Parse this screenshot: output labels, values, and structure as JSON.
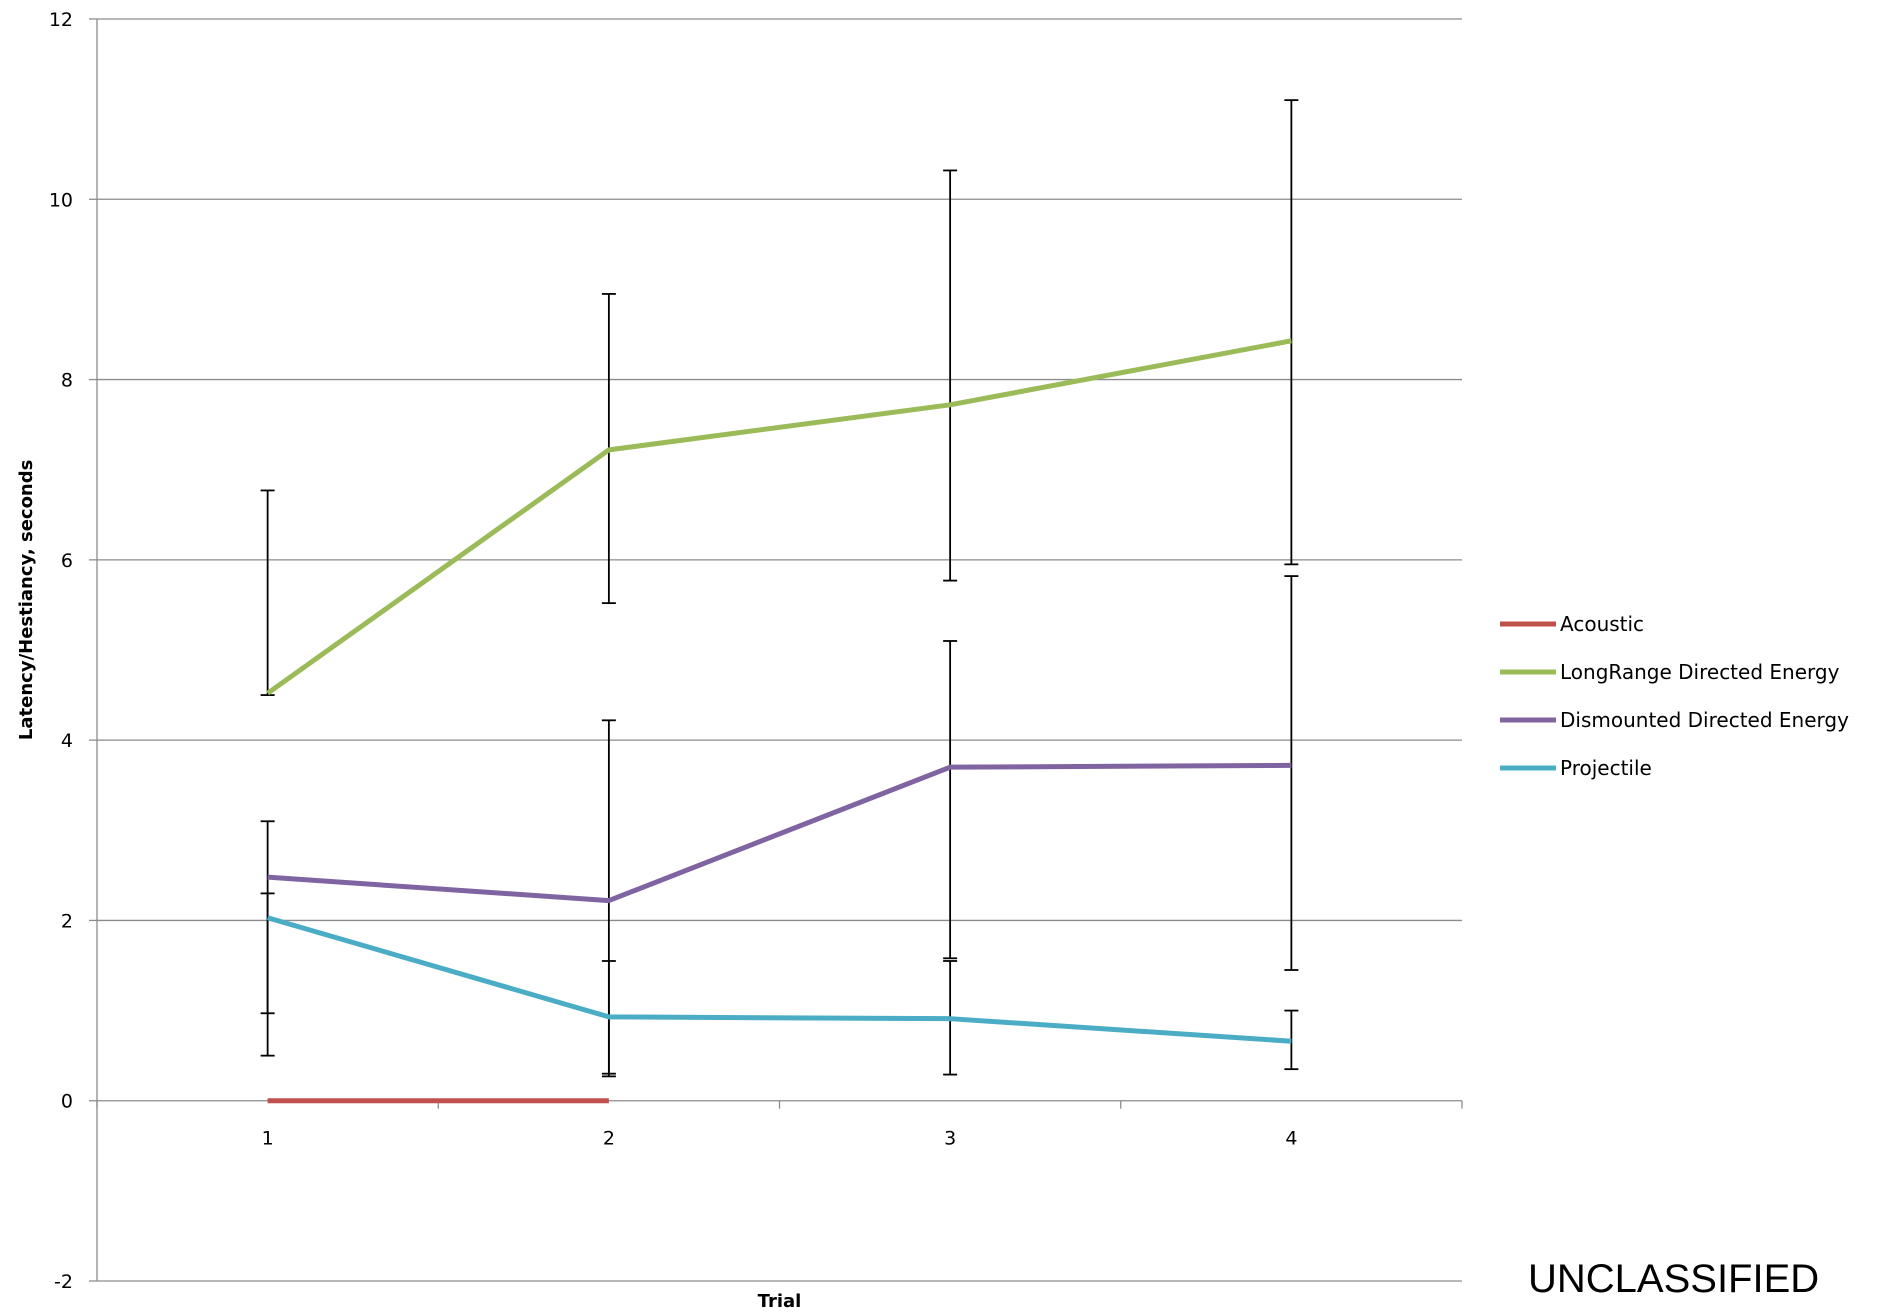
{
  "chart_data": {
    "type": "line",
    "title": "",
    "xlabel": "Trial",
    "ylabel": "Latency/Hestiancy, seconds",
    "categories": [
      "1",
      "2",
      "3",
      "4"
    ],
    "ylim": [
      -2,
      12
    ],
    "yticks": [
      "-2",
      "0",
      "2",
      "4",
      "6",
      "8",
      "10",
      "12"
    ],
    "grid": "horizontal",
    "legend_position": "right",
    "series": [
      {
        "name": "Acoustic",
        "color": "#c0504d",
        "values": [
          0,
          0,
          null,
          null
        ],
        "error_bars": null
      },
      {
        "name": "LongRange Directed Energy",
        "color": "#9bbb59",
        "values": [
          4.52,
          7.22,
          7.72,
          8.43
        ],
        "error_bars": [
          [
            4.5,
            6.77
          ],
          [
            5.52,
            8.95
          ],
          [
            5.77,
            10.32
          ],
          [
            5.95,
            11.1
          ]
        ]
      },
      {
        "name": "Dismounted Directed Energy",
        "color": "#8064a2",
        "values": [
          2.48,
          2.22,
          3.7,
          3.72
        ],
        "error_bars": [
          [
            0.97,
            3.1
          ],
          [
            0.3,
            4.22
          ],
          [
            1.58,
            5.1
          ],
          [
            1.45,
            5.82
          ]
        ]
      },
      {
        "name": "Projectile",
        "color": "#4bacc6",
        "values": [
          2.03,
          0.93,
          0.91,
          0.66
        ],
        "error_bars": [
          [
            0.5,
            2.3
          ],
          [
            0.27,
            1.55
          ],
          [
            0.29,
            1.55
          ],
          [
            0.35,
            1.0
          ]
        ]
      }
    ]
  },
  "footer": {
    "classification": "UNCLASSIFIED"
  }
}
